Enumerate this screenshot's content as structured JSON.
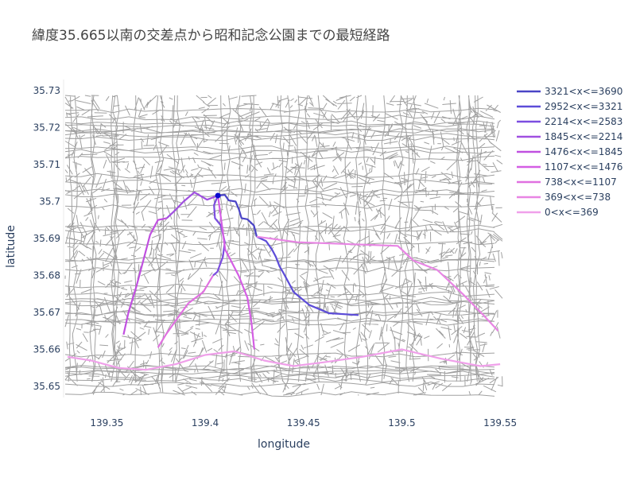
{
  "chart_data": {
    "type": "line",
    "title": "緯度35.665以南の交差点から昭和記念公園までの最短経路",
    "xlabel": "longitude",
    "ylabel": "latitude",
    "xlim": [
      139.328,
      139.552
    ],
    "ylim": [
      35.647,
      35.733
    ],
    "x_ticks": [
      139.35,
      139.4,
      139.45,
      139.5,
      139.55
    ],
    "x_tick_labels": [
      "139.35",
      "139.4",
      "139.45",
      "139.5",
      "139.55"
    ],
    "y_ticks": [
      35.65,
      35.66,
      35.67,
      35.68,
      35.69,
      35.7,
      35.71,
      35.72,
      35.73
    ],
    "y_tick_labels": [
      "35.65",
      "35.66",
      "35.67",
      "35.68",
      "35.69",
      "35.7",
      "35.71",
      "35.72",
      "35.73"
    ],
    "grid": false,
    "legend_position": "right",
    "background_network": {
      "color": "#a0a0a0"
    },
    "destination": {
      "lon": 139.4065,
      "lat": 35.7016,
      "color": "#0a0ad0"
    },
    "series": [
      {
        "name": "3321<x<=3690",
        "color": "#4a44c6",
        "points": [
          [
            139.4065,
            35.7016
          ],
          [
            139.41,
            35.7018
          ],
          [
            139.412,
            35.7003
          ],
          [
            139.4155,
            35.7
          ],
          [
            139.4172,
            35.6978
          ],
          [
            139.4185,
            35.6955
          ],
          [
            139.4215,
            35.6952
          ],
          [
            139.4248,
            35.6935
          ],
          [
            139.4262,
            35.6905
          ]
        ]
      },
      {
        "name": "2952<x<=3321",
        "color": "#5c4cd8",
        "points": [
          [
            139.4262,
            35.6905
          ],
          [
            139.431,
            35.6893
          ],
          [
            139.434,
            35.687
          ],
          [
            139.436,
            35.685
          ],
          [
            139.4378,
            35.6825
          ],
          [
            139.44,
            35.6805
          ],
          [
            139.445,
            35.6755
          ],
          [
            139.453,
            35.672
          ],
          [
            139.463,
            35.6698
          ],
          [
            139.478,
            35.6693
          ]
        ]
      },
      {
        "name": "2214<x<=2583",
        "color": "#7c4ee0",
        "points": [
          [
            139.4065,
            35.7016
          ],
          [
            139.4045,
            35.699
          ],
          [
            139.405,
            35.6955
          ],
          [
            139.408,
            35.6935
          ],
          [
            139.41,
            35.689
          ],
          [
            139.409,
            35.685
          ],
          [
            139.4062,
            35.681
          ],
          [
            139.404,
            35.68
          ]
        ]
      },
      {
        "name": "1845<x<=2214",
        "color": "#a050e0",
        "points": [
          [
            139.4065,
            35.7016
          ],
          [
            139.401,
            35.7005
          ],
          [
            139.3945,
            35.7025
          ],
          [
            139.389,
            35.7
          ],
          [
            139.3845,
            35.6975
          ],
          [
            139.3805,
            35.6955
          ]
        ]
      },
      {
        "name": "1476<x<=1845",
        "color": "#c050e0",
        "points": [
          [
            139.3805,
            35.6955
          ],
          [
            139.376,
            35.695
          ],
          [
            139.372,
            35.691
          ],
          [
            139.3685,
            35.684
          ],
          [
            139.365,
            35.677
          ],
          [
            139.361,
            35.67
          ],
          [
            139.3585,
            35.664
          ]
        ]
      },
      {
        "name": "1107<x<=1476",
        "color": "#d45ee4",
        "points": [
          [
            139.4065,
            35.7016
          ],
          [
            139.4102,
            35.687
          ],
          [
            139.417,
            35.68
          ],
          [
            139.4215,
            35.674
          ],
          [
            139.4235,
            35.6675
          ],
          [
            139.425,
            35.66
          ]
        ]
      },
      {
        "name": "738<x<=1107",
        "color": "#e070e0",
        "points": [
          [
            139.404,
            35.68
          ],
          [
            139.399,
            35.6755
          ],
          [
            139.3915,
            35.6725
          ],
          [
            139.386,
            35.6685
          ],
          [
            139.38,
            35.664
          ],
          [
            139.376,
            35.6605
          ]
        ]
      },
      {
        "name": "369<x<=738",
        "color": "#e885e4",
        "points": [
          [
            139.4262,
            35.6905
          ],
          [
            139.447,
            35.689
          ],
          [
            139.498,
            35.688
          ],
          [
            139.506,
            35.684
          ],
          [
            139.518,
            35.6815
          ],
          [
            139.531,
            35.675
          ],
          [
            139.542,
            35.669
          ],
          [
            139.549,
            35.665
          ]
        ]
      },
      {
        "name": "0<x<=369",
        "color": "#f0a0ea",
        "points": [
          [
            139.33,
            35.658
          ],
          [
            139.342,
            35.657
          ],
          [
            139.356,
            35.655
          ],
          [
            139.37,
            35.6545
          ],
          [
            139.385,
            35.656
          ],
          [
            139.4,
            35.6585
          ],
          [
            139.415,
            35.6595
          ],
          [
            139.43,
            35.657
          ],
          [
            139.445,
            35.6555
          ],
          [
            139.46,
            35.6565
          ],
          [
            139.48,
            35.658
          ],
          [
            139.5,
            35.66
          ],
          [
            139.52,
            35.6575
          ],
          [
            139.54,
            35.6555
          ],
          [
            139.55,
            35.656
          ]
        ]
      }
    ]
  }
}
